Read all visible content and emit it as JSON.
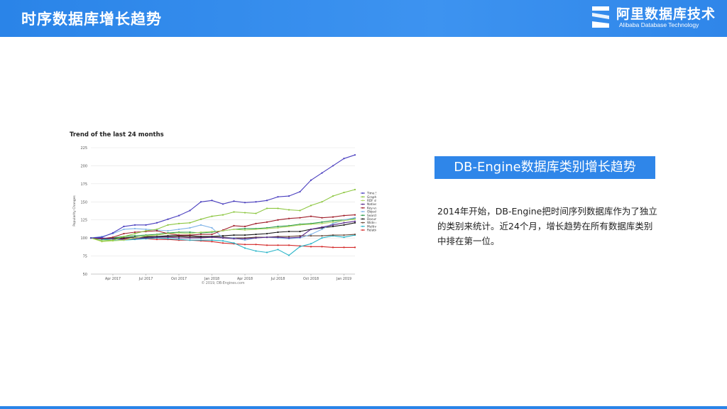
{
  "header": {
    "title": "时序数据库增长趋势"
  },
  "logo": {
    "name_cn": "阿里数据库技术",
    "name_en": "Alibaba Database Technology"
  },
  "tag": {
    "label": "DB-Engine数据库类别增长趋势"
  },
  "description": {
    "text": "2014年开始，DB-Engine把时间序列数据库作为了独立的类别来统计。近24个月，增长趋势在所有数据库类别中排在第一位。"
  },
  "chart_data": {
    "type": "line",
    "title": "Trend of the last 24 months",
    "ylabel": "Popularity Changes",
    "xlabel": "",
    "ylim": [
      50,
      225
    ],
    "yticks": [
      50,
      75,
      100,
      125,
      150,
      175,
      200,
      225
    ],
    "xtick_labels": [
      "Apr 2017",
      "Jul 2017",
      "Oct 2017",
      "Jan 2018",
      "Apr 2018",
      "Jul 2018",
      "Oct 2018",
      "Jan 2019"
    ],
    "xtick_index": [
      2,
      5,
      8,
      11,
      14,
      17,
      20,
      23
    ],
    "grid": true,
    "legend_position": "right",
    "copyright": "© 2019, DB-Engines.com",
    "series": [
      {
        "name": "Time Series DBMS",
        "color": "#4a3fbf",
        "values": [
          100,
          101,
          107,
          116,
          118,
          118,
          121,
          126,
          131,
          138,
          150,
          152,
          147,
          151,
          149,
          150,
          152,
          157,
          158,
          164,
          180,
          190,
          200,
          210,
          215
        ]
      },
      {
        "name": "Graph DBMS",
        "color": "#8cc63f",
        "values": [
          100,
          96,
          97,
          102,
          106,
          110,
          112,
          118,
          120,
          121,
          126,
          130,
          132,
          136,
          135,
          134,
          141,
          141,
          139,
          138,
          145,
          150,
          158,
          163,
          167
        ]
      },
      {
        "name": "RDF stores",
        "color": "#b5d86a",
        "values": [
          100,
          95,
          96,
          97,
          100,
          103,
          104,
          106,
          107,
          106,
          108,
          109,
          110,
          112,
          111,
          112,
          113,
          114,
          116,
          118,
          119,
          120,
          122,
          124,
          126
        ]
      },
      {
        "name": "Native XML DBMS",
        "color": "#5a2a8a",
        "values": [
          100,
          100,
          99,
          98,
          99,
          100,
          101,
          101,
          100,
          100,
          100,
          101,
          100,
          99,
          99,
          100,
          101,
          101,
          100,
          101,
          112,
          115,
          118,
          121,
          123
        ]
      },
      {
        "name": "Key-value stores",
        "color": "#a01e2a",
        "values": [
          100,
          99,
          101,
          106,
          108,
          109,
          110,
          106,
          104,
          104,
          105,
          105,
          111,
          117,
          116,
          120,
          122,
          125,
          127,
          128,
          130,
          128,
          129,
          131,
          132
        ]
      },
      {
        "name": "Object oriented DBMS",
        "color": "#7fb3e8",
        "values": [
          100,
          102,
          106,
          112,
          113,
          112,
          111,
          110,
          112,
          114,
          118,
          114,
          100,
          100,
          97,
          100,
          101,
          100,
          99,
          100,
          105,
          112,
          120,
          125,
          128
        ]
      },
      {
        "name": "Search engines",
        "color": "#2a9a4a",
        "values": [
          100,
          99,
          100,
          102,
          103,
          104,
          105,
          107,
          108,
          108,
          107,
          108,
          110,
          112,
          113,
          113,
          114,
          116,
          117,
          119,
          120,
          122,
          124,
          125,
          127
        ]
      },
      {
        "name": "Document stores",
        "color": "#1a1a1a",
        "values": [
          100,
          99,
          99,
          100,
          101,
          101,
          102,
          103,
          103,
          103,
          102,
          102,
          103,
          104,
          104,
          105,
          106,
          108,
          109,
          109,
          112,
          114,
          116,
          118,
          121
        ]
      },
      {
        "name": "Wide column stores",
        "color": "#6a4a3a",
        "values": [
          100,
          99,
          100,
          100,
          101,
          102,
          102,
          102,
          102,
          101,
          101,
          101,
          101,
          100,
          100,
          101,
          101,
          102,
          102,
          103,
          103,
          103,
          104,
          104,
          105
        ]
      },
      {
        "name": "Multivalue DBMS",
        "color": "#2ab5c8",
        "values": [
          100,
          98,
          97,
          97,
          98,
          99,
          100,
          99,
          98,
          97,
          97,
          97,
          96,
          93,
          86,
          82,
          80,
          84,
          76,
          88,
          92,
          100,
          103,
          101,
          104
        ]
      },
      {
        "name": "Relational DBMS",
        "color": "#d42a2a",
        "values": [
          100,
          99,
          99,
          99,
          99,
          99,
          98,
          98,
          97,
          97,
          96,
          95,
          93,
          92,
          91,
          91,
          90,
          90,
          90,
          89,
          88,
          88,
          87,
          87,
          87
        ]
      }
    ]
  }
}
